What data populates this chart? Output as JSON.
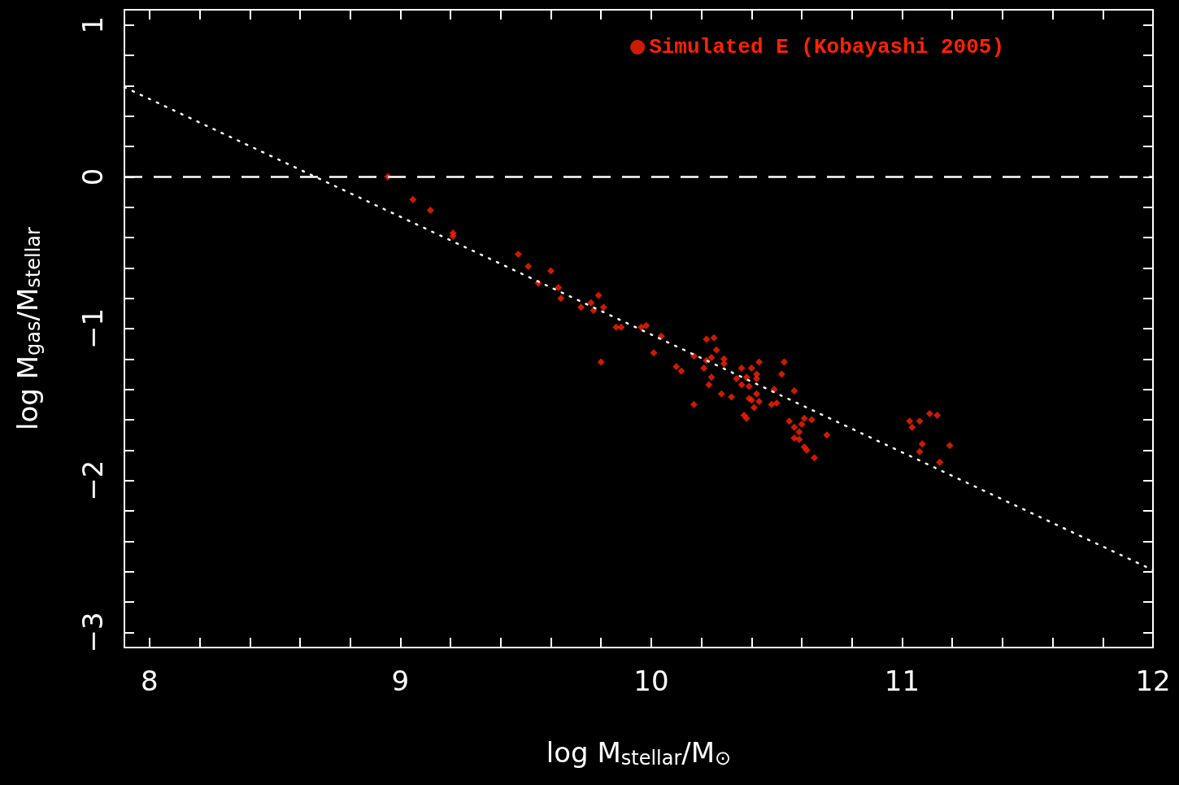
{
  "chart_data": {
    "type": "scatter",
    "xlabel": "log M$_{stellar}$/M$_{⊙}$",
    "ylabel": "log M$_{gas}$/M$_{stellar}$",
    "xlim": [
      7.9,
      12
    ],
    "ylim": [
      -3.1,
      1.1
    ],
    "xticks": [
      {
        "value": 8,
        "label": "8"
      },
      {
        "value": 8.2,
        "label": null
      },
      {
        "value": 8.4,
        "label": null
      },
      {
        "value": 8.6,
        "label": null
      },
      {
        "value": 8.8,
        "label": null
      },
      {
        "value": 9,
        "label": "9"
      },
      {
        "value": 9.2,
        "label": null
      },
      {
        "value": 9.4,
        "label": null
      },
      {
        "value": 9.6,
        "label": null
      },
      {
        "value": 9.8,
        "label": null
      },
      {
        "value": 10,
        "label": "10"
      },
      {
        "value": 10.2,
        "label": null
      },
      {
        "value": 10.4,
        "label": null
      },
      {
        "value": 10.6,
        "label": null
      },
      {
        "value": 10.8,
        "label": null
      },
      {
        "value": 11,
        "label": "11"
      },
      {
        "value": 11.2,
        "label": null
      },
      {
        "value": 11.4,
        "label": null
      },
      {
        "value": 11.6,
        "label": null
      },
      {
        "value": 11.8,
        "label": null
      },
      {
        "value": 12,
        "label": "12"
      }
    ],
    "yticks": [
      {
        "value": -3,
        "label": "−3"
      },
      {
        "value": -2.8,
        "label": null
      },
      {
        "value": -2.6,
        "label": null
      },
      {
        "value": -2.4,
        "label": null
      },
      {
        "value": -2.2,
        "label": null
      },
      {
        "value": -2,
        "label": "−2"
      },
      {
        "value": -1.8,
        "label": null
      },
      {
        "value": -1.6,
        "label": null
      },
      {
        "value": -1.4,
        "label": null
      },
      {
        "value": -1.2,
        "label": null
      },
      {
        "value": -1,
        "label": "−1"
      },
      {
        "value": -0.8,
        "label": null
      },
      {
        "value": -0.6,
        "label": null
      },
      {
        "value": -0.4,
        "label": null
      },
      {
        "value": -0.2,
        "label": null
      },
      {
        "value": 0,
        "label": "0"
      },
      {
        "value": 0.2,
        "label": null
      },
      {
        "value": 0.4,
        "label": null
      },
      {
        "value": 0.6,
        "label": null
      },
      {
        "value": 0.8,
        "label": null
      },
      {
        "value": 1,
        "label": "1"
      }
    ],
    "grid": false,
    "legend": "top right",
    "marker": "diamond",
    "ref_lines": [
      {
        "axis": "y",
        "value": 0,
        "color": "#ffffff",
        "line_style": "dashed"
      }
    ],
    "series": [
      {
        "name": "Simulated E (Kobayashi 2005)",
        "color": "#ff2200",
        "x": [
          8.95,
          9.05,
          9.12,
          9.21,
          9.21,
          9.47,
          9.51,
          9.6,
          9.55,
          9.63,
          9.64,
          9.79,
          9.76,
          9.81,
          9.72,
          9.77,
          9.86,
          9.88,
          9.96,
          9.98,
          10.04,
          9.8,
          10.01,
          10.1,
          10.12,
          10.17,
          10.22,
          10.25,
          10.17,
          10.26,
          10.24,
          10.22,
          10.29,
          10.29,
          10.21,
          10.24,
          10.23,
          10.28,
          10.32,
          10.36,
          10.4,
          10.43,
          10.34,
          10.38,
          10.42,
          10.42,
          10.36,
          10.39,
          10.42,
          10.39,
          10.4,
          10.43,
          10.41,
          10.37,
          10.38,
          10.53,
          10.52,
          10.49,
          10.57,
          10.48,
          10.5,
          10.55,
          10.61,
          10.6,
          10.64,
          10.57,
          10.59,
          10.57,
          10.59,
          10.7,
          10.61,
          10.62,
          10.65,
          11.03,
          11.04,
          11.07,
          11.11,
          11.14,
          11.08,
          11.07,
          11.19,
          11.15
        ],
        "values": [
          0.0,
          -0.15,
          -0.22,
          -0.37,
          -0.39,
          -0.51,
          -0.59,
          -0.62,
          -0.7,
          -0.73,
          -0.8,
          -0.78,
          -0.83,
          -0.86,
          -0.86,
          -0.88,
          -0.99,
          -0.99,
          -0.99,
          -0.98,
          -1.05,
          -1.22,
          -1.16,
          -1.25,
          -1.28,
          -1.5,
          -1.07,
          -1.06,
          -1.18,
          -1.14,
          -1.19,
          -1.21,
          -1.2,
          -1.23,
          -1.26,
          -1.32,
          -1.37,
          -1.43,
          -1.45,
          -1.26,
          -1.26,
          -1.22,
          -1.33,
          -1.32,
          -1.3,
          -1.33,
          -1.37,
          -1.38,
          -1.43,
          -1.46,
          -1.47,
          -1.48,
          -1.52,
          -1.57,
          -1.59,
          -1.22,
          -1.3,
          -1.4,
          -1.41,
          -1.5,
          -1.49,
          -1.61,
          -1.59,
          -1.63,
          -1.6,
          -1.65,
          -1.68,
          -1.72,
          -1.73,
          -1.7,
          -1.78,
          -1.8,
          -1.85,
          -1.61,
          -1.65,
          -1.61,
          -1.56,
          -1.57,
          -1.76,
          -1.81,
          -1.77,
          -1.88
        ]
      },
      {
        "type": "line",
        "color": "#ffffff",
        "marker": "none",
        "line_style": "dotted",
        "x": [
          7.9,
          12
        ],
        "values": [
          0.59,
          -2.59
        ]
      }
    ]
  }
}
